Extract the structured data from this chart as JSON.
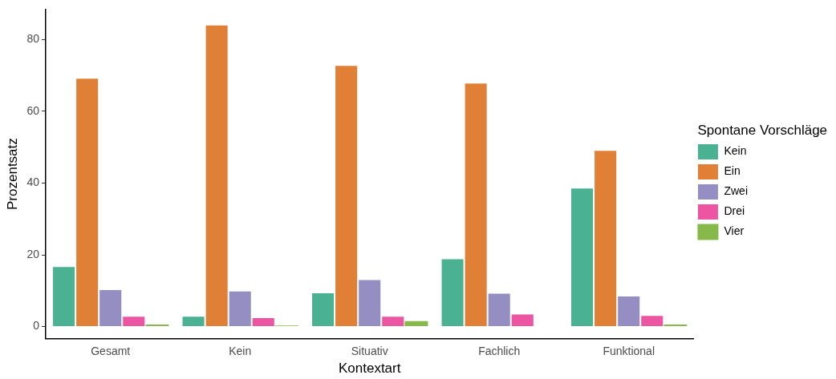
{
  "chart_data": {
    "type": "bar",
    "xlabel": "Kontextart",
    "ylabel": "Prozentsatz",
    "legend_title": "Spontane Vorschläge",
    "categories": [
      "Gesamt",
      "Kein",
      "Situativ",
      "Fachlich",
      "Funktional"
    ],
    "series": [
      {
        "name": "Kein",
        "color": "#4ab192",
        "values": [
          16.8,
          3.0,
          9.5,
          19.0,
          38.7
        ]
      },
      {
        "name": "Ein",
        "color": "#e07f36",
        "values": [
          69.3,
          84.2,
          72.9,
          68.0,
          49.2
        ]
      },
      {
        "name": "Zwei",
        "color": "#948ec3",
        "values": [
          10.4,
          10.0,
          13.2,
          9.4,
          8.6
        ]
      },
      {
        "name": "Drei",
        "color": "#ec55a2",
        "values": [
          3.0,
          2.6,
          3.0,
          3.6,
          3.2
        ]
      },
      {
        "name": "Vier",
        "color": "#86b94a",
        "values": [
          0.6,
          0.3,
          1.5,
          0,
          0.6
        ]
      }
    ],
    "ylim": [
      -3.4,
      88.5
    ],
    "yticks": [
      0,
      20,
      40,
      60,
      80
    ],
    "grid": false,
    "legend": "right"
  }
}
